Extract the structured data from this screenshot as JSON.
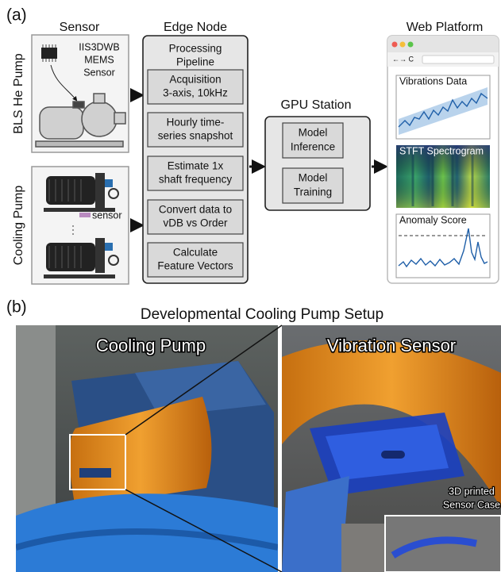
{
  "panel_a": {
    "label": "(a)",
    "sensor": {
      "title": "Sensor",
      "device_label": [
        "IIS3DWB",
        "MEMS",
        "Sensor"
      ],
      "pumps": [
        "BLS He Pump",
        "Cooling Pump"
      ],
      "sensor_tag": "sensor"
    },
    "edge_node": {
      "title": "Edge Node",
      "pipeline_title": [
        "Processing",
        "Pipeline"
      ],
      "steps": [
        [
          "Acquisition",
          "3-axis, 10kHz"
        ],
        [
          "Hourly time-",
          "series snapshot"
        ],
        [
          "Estimate 1x",
          "shaft frequency"
        ],
        [
          "Convert data to",
          "vDB vs Order"
        ],
        [
          "Calculate",
          "Feature Vectors"
        ]
      ]
    },
    "gpu_station": {
      "title": "GPU Station",
      "blocks": [
        [
          "Model",
          "Inference"
        ],
        [
          "Model",
          "Training"
        ]
      ]
    },
    "web_platform": {
      "title": "Web Platform",
      "panels": [
        "Vibrations Data",
        "STFT Spectrogram",
        "Anomaly Score"
      ]
    }
  },
  "panel_b": {
    "label": "(b)",
    "title": "Developmental Cooling Pump Setup",
    "photos": [
      "Cooling Pump",
      "Vibration Sensor"
    ],
    "inset_label": [
      "3D printed",
      "Sensor Case"
    ]
  }
}
